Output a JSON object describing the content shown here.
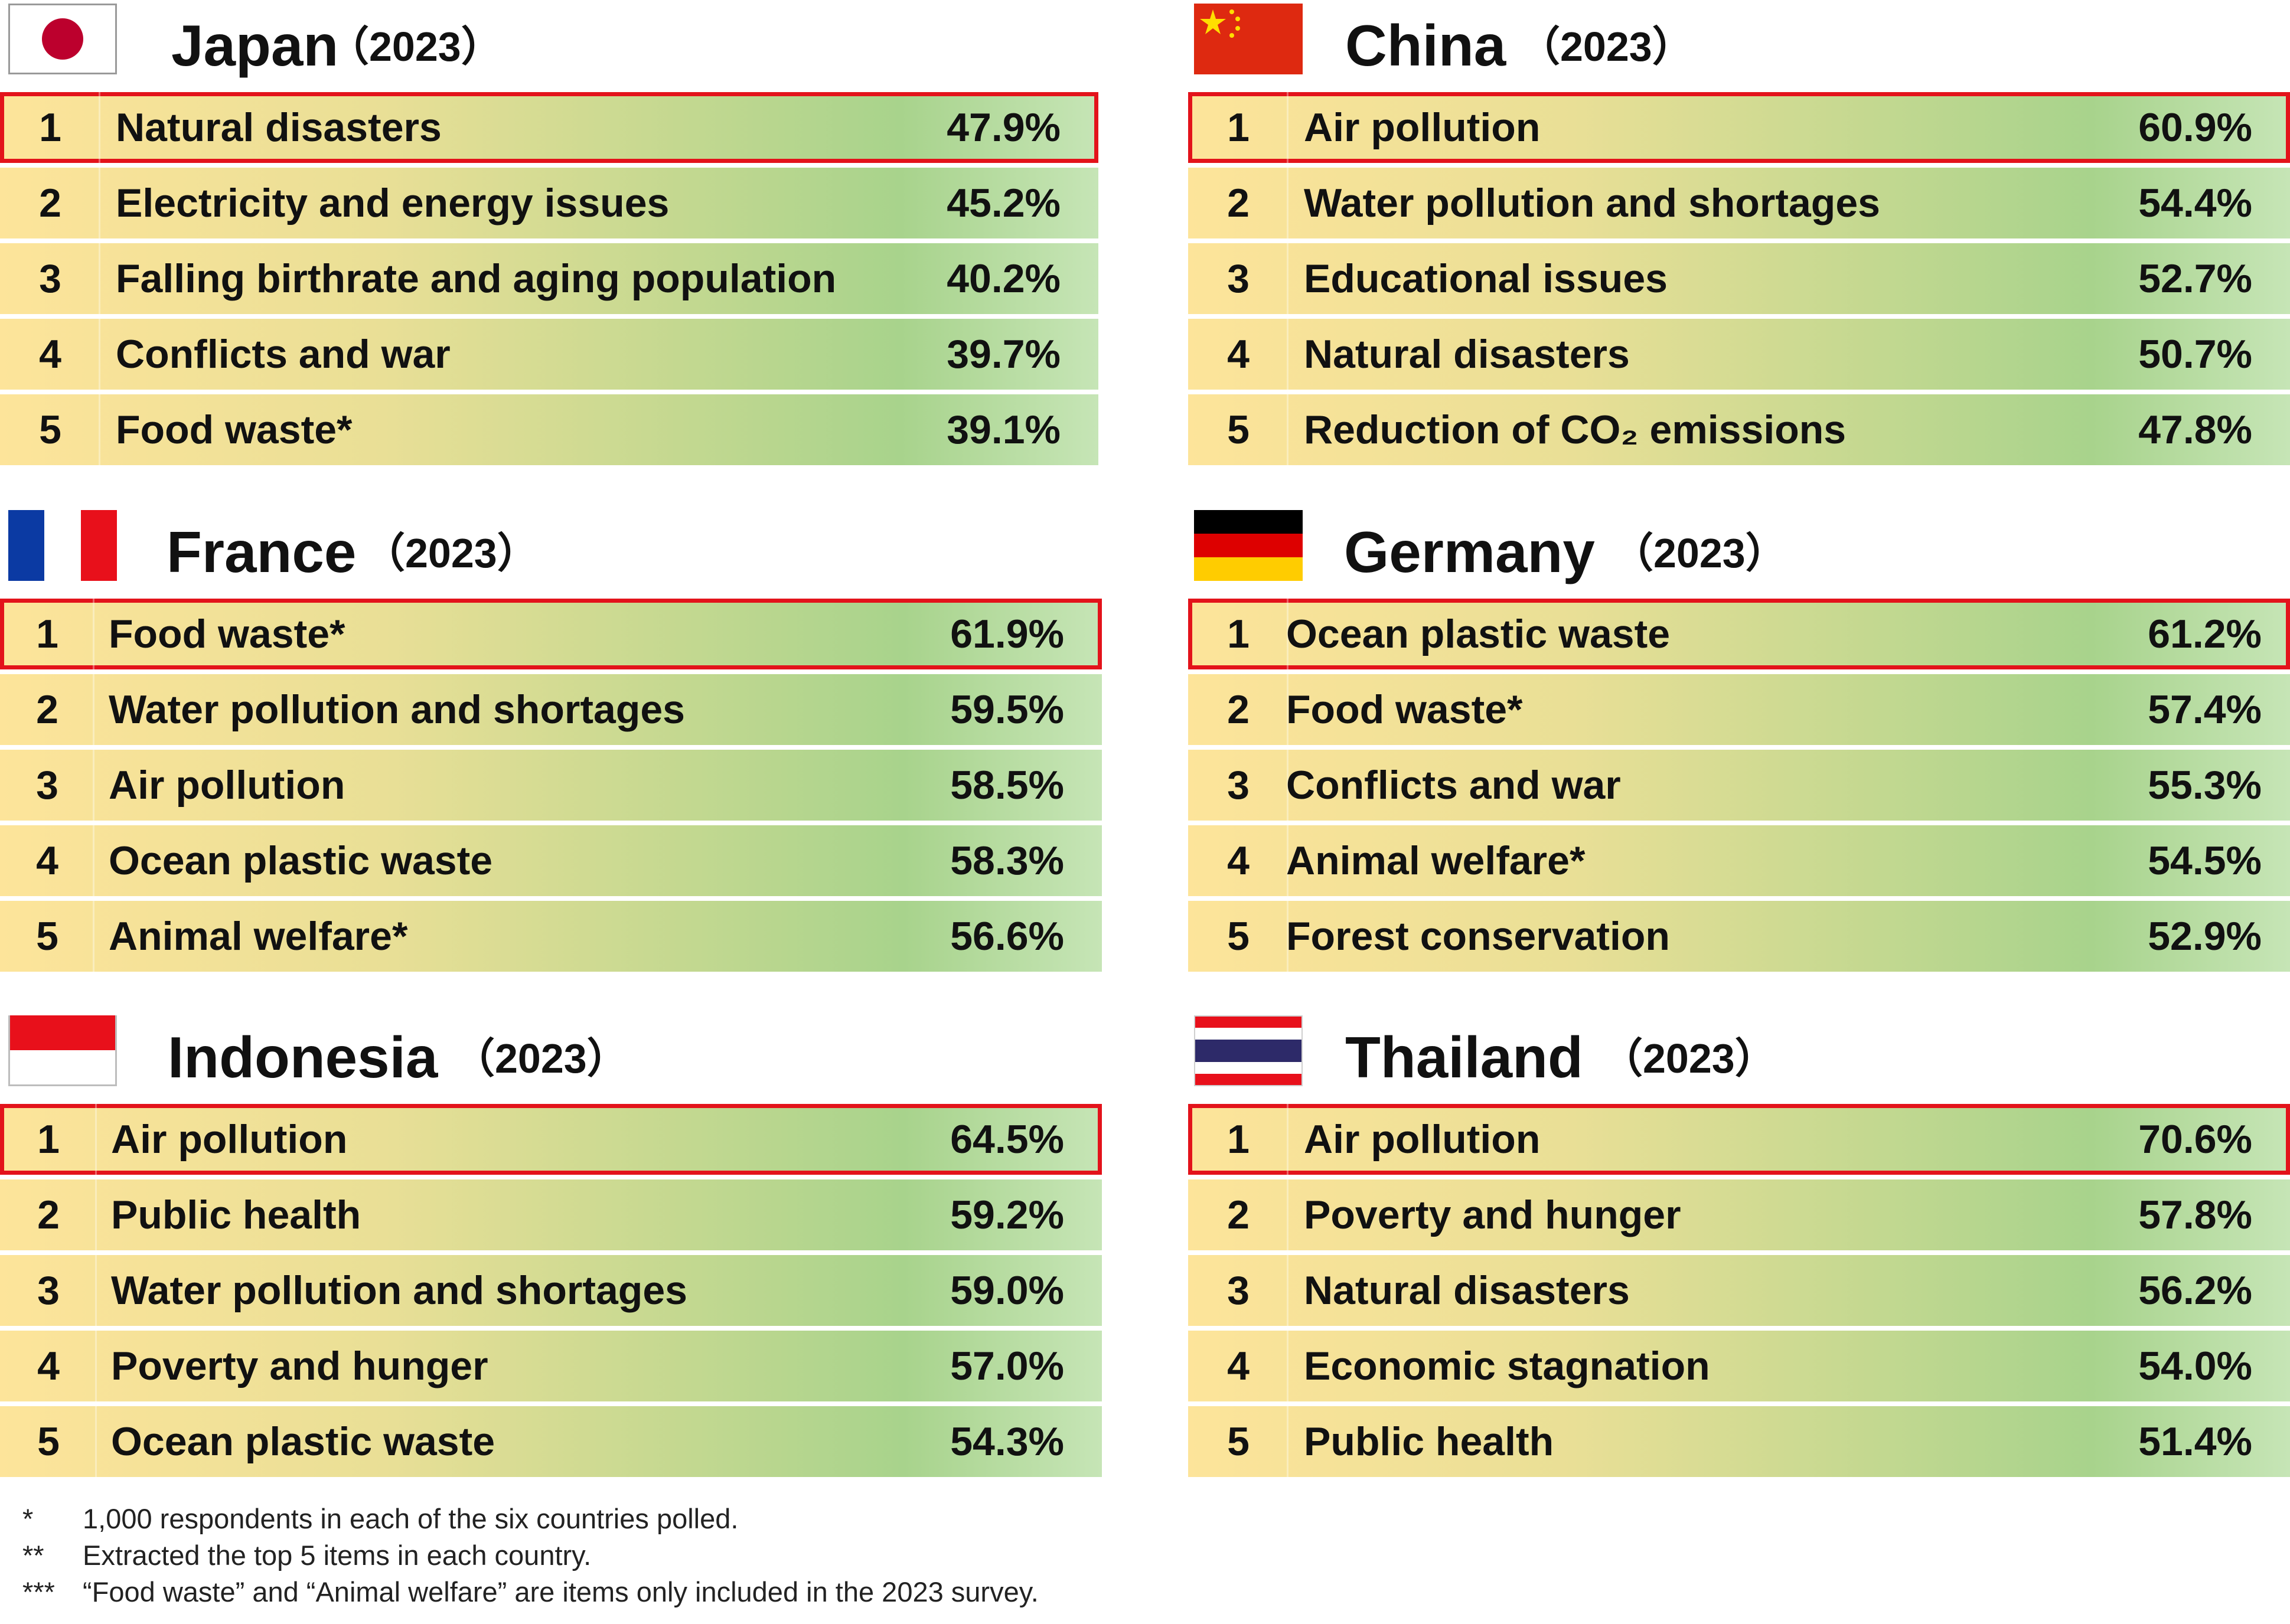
{
  "chart_data": [
    {
      "type": "table",
      "country": "Japan",
      "year_label": "（2023）",
      "categories": [
        "Natural disasters",
        "Electricity and energy issues",
        "Falling birthrate and aging population",
        "Conflicts and war",
        "Food waste*"
      ],
      "ranks": [
        "1",
        "2",
        "3",
        "4",
        "5"
      ],
      "values": [
        47.9,
        45.2,
        40.2,
        39.7,
        39.1
      ],
      "value_labels": [
        "47.9%",
        "45.2%",
        "40.2%",
        "39.7%",
        "39.1%"
      ]
    },
    {
      "type": "table",
      "country": "China",
      "year_label": "（2023）",
      "categories": [
        "Air pollution",
        "Water pollution and shortages",
        "Educational issues",
        "Natural disasters",
        "Reduction of CO₂ emissions"
      ],
      "ranks": [
        "1",
        "2",
        "3",
        "4",
        "5"
      ],
      "values": [
        60.9,
        54.4,
        52.7,
        50.7,
        47.8
      ],
      "value_labels": [
        "60.9%",
        "54.4%",
        "52.7%",
        "50.7%",
        "47.8%"
      ]
    },
    {
      "type": "table",
      "country": "France",
      "year_label": "（2023）",
      "categories": [
        "Food waste*",
        "Water pollution and shortages",
        "Air pollution",
        "Ocean plastic waste",
        "Animal welfare*"
      ],
      "ranks": [
        "1",
        "2",
        "3",
        "4",
        "5"
      ],
      "values": [
        61.9,
        59.5,
        58.5,
        58.3,
        56.6
      ],
      "value_labels": [
        "61.9%",
        "59.5%",
        "58.5%",
        "58.3%",
        "56.6%"
      ]
    },
    {
      "type": "table",
      "country": "Germany",
      "year_label": "（2023）",
      "categories": [
        "Ocean plastic waste",
        "Food waste*",
        "Conflicts and war",
        "Animal welfare*",
        "Forest conservation"
      ],
      "ranks": [
        "1",
        "2",
        "3",
        "4",
        "5"
      ],
      "values": [
        61.2,
        57.4,
        55.3,
        54.5,
        52.9
      ],
      "value_labels": [
        "61.2%",
        "57.4%",
        "55.3%",
        "54.5%",
        "52.9%"
      ]
    },
    {
      "type": "table",
      "country": "Indonesia",
      "year_label": "（2023）",
      "categories": [
        "Air pollution",
        "Public health",
        "Water pollution and shortages",
        "Poverty and hunger",
        "Ocean plastic waste"
      ],
      "ranks": [
        "1",
        "2",
        "3",
        "4",
        "5"
      ],
      "values": [
        64.5,
        59.2,
        59.0,
        57.0,
        54.3
      ],
      "value_labels": [
        "64.5%",
        "59.2%",
        "59.0%",
        "57.0%",
        "54.3%"
      ]
    },
    {
      "type": "table",
      "country": "Thailand",
      "year_label": "（2023）",
      "categories": [
        "Air pollution",
        "Poverty and hunger",
        "Natural disasters",
        "Economic stagnation",
        "Public health"
      ],
      "ranks": [
        "1",
        "2",
        "3",
        "4",
        "5"
      ],
      "values": [
        70.6,
        57.8,
        56.2,
        54.0,
        51.4
      ],
      "value_labels": [
        "70.6%",
        "57.8%",
        "56.2%",
        "54.0%",
        "51.4%"
      ]
    }
  ],
  "flags": {
    "japan": "japan-flag-icon",
    "china": "china-flag-icon",
    "france": "france-flag-icon",
    "germany": "germany-flag-icon",
    "indonesia": "indonesia-flag-icon",
    "thailand": "thailand-flag-icon"
  },
  "colors": {
    "highlight_border": "#e3131b",
    "row_gradient_start": "#fde49a",
    "row_gradient_end": "#a8d38c"
  },
  "notes": [
    {
      "marker": "*",
      "text": "1,000 respondents in each of the six countries polled."
    },
    {
      "marker": "**",
      "text": "Extracted the top 5 items in each country."
    },
    {
      "marker": "***",
      "text": "“Food waste” and “Animal welfare” are items only included in the 2023 survey."
    }
  ]
}
